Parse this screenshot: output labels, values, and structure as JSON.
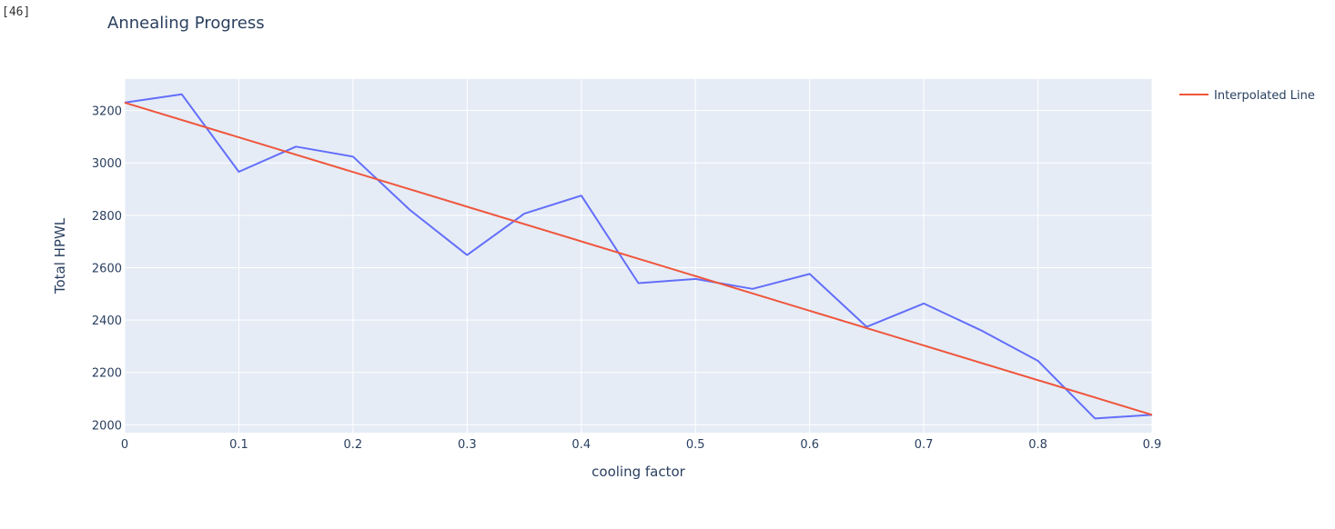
{
  "cell": {
    "prompt_label": "[46]"
  },
  "chart_data": {
    "type": "line",
    "title": "Annealing Progress",
    "xlabel": "cooling factor",
    "ylabel": "Total HPWL",
    "xlim": [
      0,
      0.9
    ],
    "ylim": [
      1970,
      3320
    ],
    "x_ticks": [
      0,
      0.1,
      0.2,
      0.3,
      0.4,
      0.5,
      0.6,
      0.7,
      0.8,
      0.9
    ],
    "x_tick_labels": [
      "0",
      "0.1",
      "0.2",
      "0.3",
      "0.4",
      "0.5",
      "0.6",
      "0.7",
      "0.8",
      "0.9"
    ],
    "y_ticks": [
      2000,
      2200,
      2400,
      2600,
      2800,
      3000,
      3200
    ],
    "y_tick_labels": [
      "2000",
      "2200",
      "2400",
      "2600",
      "2800",
      "3000",
      "3200"
    ],
    "grid": true,
    "legend_position": "top-right",
    "series": [
      {
        "color": "#636efa",
        "x": [
          0,
          0.05,
          0.1,
          0.15,
          0.2,
          0.25,
          0.3,
          0.35,
          0.4,
          0.45,
          0.5,
          0.55,
          0.6,
          0.65,
          0.7,
          0.75,
          0.8,
          0.85,
          0.9
        ],
        "y": [
          3230,
          3262,
          2966,
          3062,
          3024,
          2820,
          2648,
          2806,
          2875,
          2541,
          2557,
          2519,
          2576,
          2374,
          2463,
          2361,
          2244,
          2024,
          2038
        ]
      },
      {
        "name": "Interpolated Line",
        "color": "#ef553b",
        "x": [
          0,
          0.9
        ],
        "y": [
          3230,
          2038
        ]
      }
    ]
  }
}
